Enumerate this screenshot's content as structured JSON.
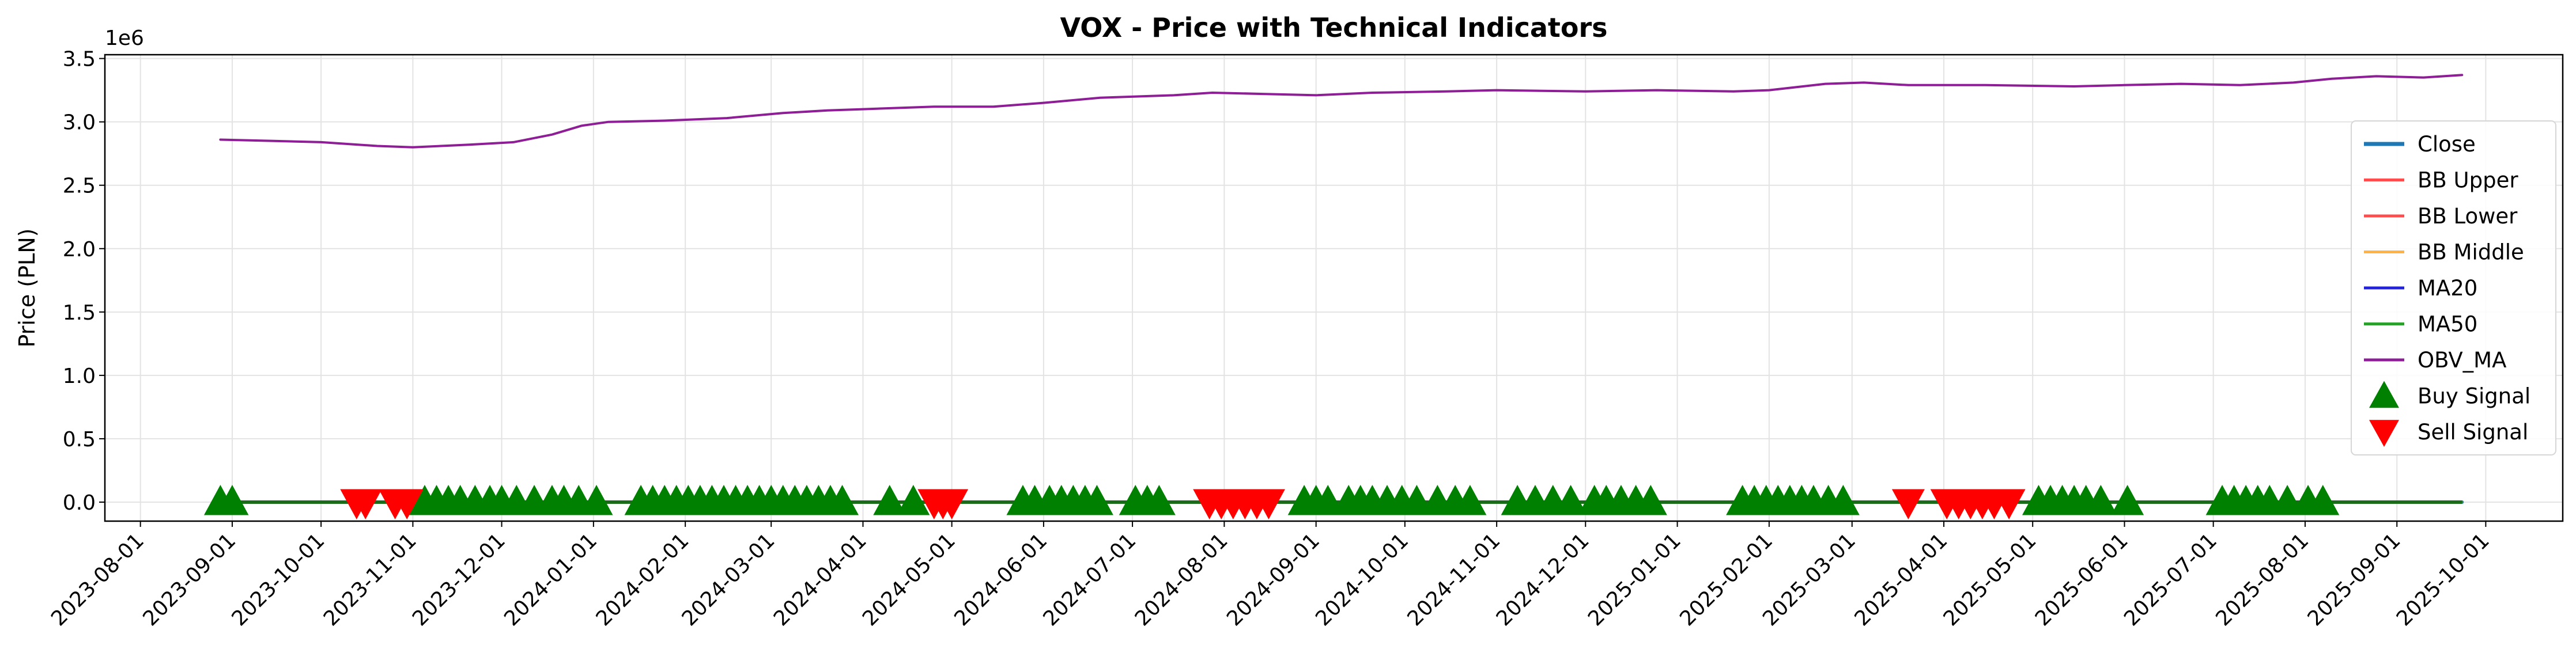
{
  "chart_data": {
    "type": "line",
    "title": "VOX - Price with Technical Indicators",
    "xlabel": "",
    "ylabel": "Price (PLN)",
    "y_offset_label": "1e6",
    "ylim": [
      -0.15,
      3.53
    ],
    "xlim": [
      "2023-07-20",
      "2025-10-27"
    ],
    "x_ticks": [
      "2023-08-01",
      "2023-09-01",
      "2023-10-01",
      "2023-11-01",
      "2023-12-01",
      "2024-01-01",
      "2024-02-01",
      "2024-03-01",
      "2024-04-01",
      "2024-05-01",
      "2024-06-01",
      "2024-07-01",
      "2024-08-01",
      "2024-09-01",
      "2024-10-01",
      "2024-11-01",
      "2024-12-01",
      "2025-01-01",
      "2025-02-01",
      "2025-03-01",
      "2025-04-01",
      "2025-05-01",
      "2025-06-01",
      "2025-07-01",
      "2025-08-01",
      "2025-09-01",
      "2025-10-01"
    ],
    "y_ticks": [
      0.0,
      0.5,
      1.0,
      1.5,
      2.0,
      2.5,
      3.0,
      3.5
    ],
    "grid": true,
    "legend_position": "right",
    "series": [
      {
        "name": "Close",
        "color": "#1f77b4",
        "style": "line",
        "points": [
          [
            "2023-08-28",
            0.0
          ],
          [
            "2025-09-23",
            0.0
          ]
        ]
      },
      {
        "name": "BB Upper",
        "color": "#ff4d4d",
        "style": "line",
        "points": [
          [
            "2023-08-28",
            0.0
          ],
          [
            "2025-09-23",
            0.0
          ]
        ]
      },
      {
        "name": "BB Lower",
        "color": "#ff4d4d",
        "style": "line",
        "points": [
          [
            "2023-08-28",
            0.0
          ],
          [
            "2025-09-23",
            0.0
          ]
        ]
      },
      {
        "name": "BB Middle",
        "color": "#ffb347",
        "style": "line",
        "points": [
          [
            "2023-08-28",
            0.0
          ],
          [
            "2025-09-23",
            0.0
          ]
        ]
      },
      {
        "name": "MA20",
        "color": "#2222dd",
        "style": "line",
        "points": [
          [
            "2023-08-28",
            0.0
          ],
          [
            "2025-09-23",
            0.0
          ]
        ]
      },
      {
        "name": "MA50",
        "color": "#2ca02c",
        "style": "line",
        "points": [
          [
            "2023-08-28",
            0.0
          ],
          [
            "2025-09-23",
            0.0
          ]
        ]
      },
      {
        "name": "OBV_MA",
        "color": "#8e1e96",
        "style": "line",
        "points": [
          [
            "2023-08-28",
            2.86
          ],
          [
            "2023-09-15",
            2.85
          ],
          [
            "2023-10-01",
            2.84
          ],
          [
            "2023-10-20",
            2.81
          ],
          [
            "2023-11-01",
            2.8
          ],
          [
            "2023-11-20",
            2.82
          ],
          [
            "2023-12-05",
            2.84
          ],
          [
            "2023-12-18",
            2.9
          ],
          [
            "2023-12-28",
            2.97
          ],
          [
            "2024-01-06",
            3.0
          ],
          [
            "2024-01-25",
            3.01
          ],
          [
            "2024-02-15",
            3.03
          ],
          [
            "2024-03-05",
            3.07
          ],
          [
            "2024-03-20",
            3.09
          ],
          [
            "2024-04-01",
            3.1
          ],
          [
            "2024-04-25",
            3.12
          ],
          [
            "2024-05-15",
            3.12
          ],
          [
            "2024-06-01",
            3.15
          ],
          [
            "2024-06-20",
            3.19
          ],
          [
            "2024-07-15",
            3.21
          ],
          [
            "2024-07-28",
            3.23
          ],
          [
            "2024-08-15",
            3.22
          ],
          [
            "2024-09-01",
            3.21
          ],
          [
            "2024-09-20",
            3.23
          ],
          [
            "2024-10-15",
            3.24
          ],
          [
            "2024-11-01",
            3.25
          ],
          [
            "2024-12-01",
            3.24
          ],
          [
            "2024-12-25",
            3.25
          ],
          [
            "2025-01-20",
            3.24
          ],
          [
            "2025-02-01",
            3.25
          ],
          [
            "2025-02-20",
            3.3
          ],
          [
            "2025-03-05",
            3.31
          ],
          [
            "2025-03-20",
            3.29
          ],
          [
            "2025-04-15",
            3.29
          ],
          [
            "2025-05-15",
            3.28
          ],
          [
            "2025-06-01",
            3.29
          ],
          [
            "2025-06-20",
            3.3
          ],
          [
            "2025-07-10",
            3.29
          ],
          [
            "2025-07-28",
            3.31
          ],
          [
            "2025-08-10",
            3.34
          ],
          [
            "2025-08-25",
            3.36
          ],
          [
            "2025-09-10",
            3.35
          ],
          [
            "2025-09-23",
            3.37
          ]
        ]
      },
      {
        "name": "Buy Signal",
        "color": "#008000",
        "style": "marker-up",
        "y": 0.0,
        "dates": [
          "2023-08-28",
          "2023-09-01",
          "2023-11-05",
          "2023-11-09",
          "2023-11-13",
          "2023-11-17",
          "2023-11-22",
          "2023-11-27",
          "2023-12-01",
          "2023-12-06",
          "2023-12-12",
          "2023-12-18",
          "2023-12-22",
          "2023-12-27",
          "2024-01-02",
          "2024-01-17",
          "2024-01-21",
          "2024-01-25",
          "2024-01-29",
          "2024-02-02",
          "2024-02-06",
          "2024-02-10",
          "2024-02-14",
          "2024-02-18",
          "2024-02-22",
          "2024-02-26",
          "2024-03-01",
          "2024-03-05",
          "2024-03-09",
          "2024-03-13",
          "2024-03-17",
          "2024-03-21",
          "2024-03-25",
          "2024-04-10",
          "2024-04-18",
          "2024-05-25",
          "2024-05-29",
          "2024-06-03",
          "2024-06-07",
          "2024-06-11",
          "2024-06-15",
          "2024-06-19",
          "2024-07-02",
          "2024-07-06",
          "2024-07-10",
          "2024-08-28",
          "2024-09-01",
          "2024-09-05",
          "2024-09-12",
          "2024-09-16",
          "2024-09-20",
          "2024-09-25",
          "2024-09-30",
          "2024-10-05",
          "2024-10-12",
          "2024-10-18",
          "2024-10-23",
          "2024-11-08",
          "2024-11-14",
          "2024-11-20",
          "2024-11-26",
          "2024-12-04",
          "2024-12-08",
          "2024-12-13",
          "2024-12-18",
          "2024-12-23",
          "2025-01-23",
          "2025-01-27",
          "2025-01-31",
          "2025-02-04",
          "2025-02-08",
          "2025-02-12",
          "2025-02-16",
          "2025-02-21",
          "2025-02-26",
          "2025-05-03",
          "2025-05-07",
          "2025-05-11",
          "2025-05-15",
          "2025-05-19",
          "2025-05-24",
          "2025-06-02",
          "2025-07-04",
          "2025-07-08",
          "2025-07-12",
          "2025-07-16",
          "2025-07-20",
          "2025-07-26",
          "2025-08-02",
          "2025-08-07"
        ]
      },
      {
        "name": "Sell Signal",
        "color": "#ff0000",
        "style": "marker-down",
        "y": 0.0,
        "dates": [
          "2023-10-13",
          "2023-10-16",
          "2023-10-26",
          "2023-10-30",
          "2024-04-25",
          "2024-04-28",
          "2024-05-01",
          "2024-07-27",
          "2024-07-31",
          "2024-08-04",
          "2024-08-08",
          "2024-08-12",
          "2024-08-16",
          "2025-03-20",
          "2025-04-02",
          "2025-04-06",
          "2025-04-10",
          "2025-04-14",
          "2025-04-18",
          "2025-04-23"
        ]
      }
    ]
  }
}
